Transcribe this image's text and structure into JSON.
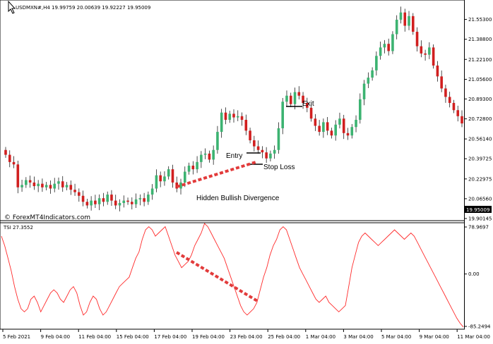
{
  "price_panel": {
    "header": "USDMXN#,H4  19.99759 20.00639 19.92227 19.95009",
    "watermark": "© ForexMT4Indicators.com",
    "price_ticks": [
      "21.55300",
      "21.38800",
      "21.22100",
      "21.05600",
      "20.89300",
      "20.72800",
      "20.56140",
      "20.39725",
      "20.22975",
      "20.06560",
      "19.90145"
    ],
    "current_price": "19.95009",
    "annotations": {
      "entry": "Entry",
      "exit": "Exit",
      "stop_loss": "Stop Loss",
      "divergence": "Hidden Bullish Divergence"
    }
  },
  "tsi_panel": {
    "header": "TSI 27.3552",
    "ticks": [
      "78.9697",
      "0.00",
      "-85.2494"
    ]
  },
  "time_axis": {
    "labels": [
      "5 Feb 2021",
      "9 Feb 04:00",
      "11 Feb 04:00",
      "15 Feb 04:00",
      "17 Feb 04:00",
      "19 Feb 04:00",
      "23 Feb 04:00",
      "25 Feb 04:00",
      "1 Mar 04:00",
      "3 Mar 04:00",
      "5 Mar 04:00",
      "9 Mar 04:00",
      "11 Mar 04:00"
    ]
  },
  "colors": {
    "bull": "#3cb371",
    "bear": "#d11f1f",
    "divergence": "#e23b3b",
    "tsi_line": "#ff2a2a"
  },
  "chart_data": [
    {
      "type": "candlestick",
      "series": [
        {
          "values": [
            20.43,
            20.37,
            20.35,
            20.16,
            20.18,
            20.22,
            20.2,
            20.17,
            20.19,
            20.16,
            20.18,
            20.15,
            20.19,
            20.21,
            20.16,
            20.18,
            20.14,
            20.12,
            20.09,
            20.04,
            20.01,
            20.05,
            20.02,
            20.07,
            20.04,
            20.1,
            20.05,
            20.01,
            20.03,
            20.05,
            20.04,
            20.02,
            20.06,
            20.07,
            20.04,
            20.1,
            20.15,
            20.26,
            20.21,
            20.25,
            20.31,
            20.2,
            20.15,
            20.2,
            20.29,
            20.34,
            20.31,
            20.37,
            20.43,
            20.44,
            20.39,
            20.47,
            20.62,
            20.78,
            20.72,
            20.77,
            20.74,
            20.75,
            20.72,
            20.63,
            20.55,
            20.5,
            20.47,
            20.45,
            20.4,
            20.44,
            20.47,
            20.65,
            20.87,
            20.92,
            20.85,
            20.95,
            20.92,
            20.86,
            20.82,
            20.73,
            20.67,
            20.62,
            20.7,
            20.63,
            20.59,
            20.68,
            20.73,
            20.61,
            20.59,
            20.66,
            20.72,
            20.89,
            21.02,
            21.07,
            21.13,
            21.25,
            21.32,
            21.35,
            21.29,
            21.43,
            21.55,
            21.61,
            21.5,
            21.58,
            21.45,
            21.33,
            21.27,
            21.26,
            21.32,
            21.17,
            21.08,
            20.98,
            20.91,
            20.86,
            20.8,
            20.75,
            20.69
          ]
        }
      ],
      "visible_range": [
        19.90145,
        21.62
      ]
    },
    {
      "type": "line",
      "series": [
        {
          "name": "TSI",
          "values": [
            60,
            45,
            25,
            5,
            -20,
            -40,
            -55,
            -60,
            -55,
            -40,
            -35,
            -45,
            -60,
            -50,
            -40,
            -30,
            -25,
            -30,
            -40,
            -45,
            -35,
            -25,
            -20,
            -30,
            -50,
            -65,
            -60,
            -45,
            -35,
            -40,
            -55,
            -65,
            -60,
            -50,
            -40,
            -30,
            -20,
            -15,
            -10,
            -5,
            10,
            25,
            35,
            55,
            70,
            75,
            70,
            60,
            65,
            70,
            75,
            60,
            45,
            30,
            20,
            10,
            15,
            20,
            30,
            45,
            55,
            65,
            80,
            75,
            65,
            55,
            45,
            35,
            25,
            10,
            -5,
            -20,
            -35,
            -50,
            -60,
            -65,
            -60,
            -55,
            -45,
            -25,
            -5,
            10,
            30,
            45,
            55,
            70,
            75,
            70,
            55,
            40,
            25,
            10,
            0,
            -10,
            -20,
            -30,
            -40,
            -45,
            -40,
            -35,
            -45,
            -50,
            -55,
            -60,
            -55,
            -50,
            -20,
            10,
            30,
            50,
            60,
            65,
            60,
            55,
            50,
            45,
            50,
            55,
            60,
            65,
            70,
            65,
            60,
            55,
            60,
            65,
            60,
            50,
            40,
            30,
            20,
            10,
            0,
            -10,
            -20,
            -30,
            -40,
            -50,
            -60,
            -70,
            -78,
            -84
          ],
          "name_label": "TSI"
        }
      ],
      "ylim": [
        -85.2494,
        78.9697
      ]
    }
  ]
}
